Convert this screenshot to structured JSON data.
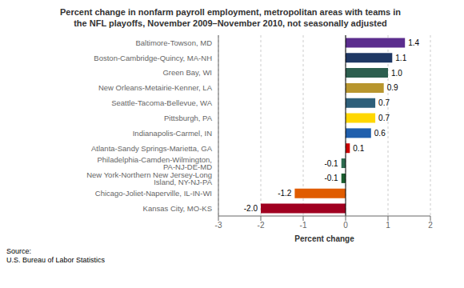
{
  "chart_data": {
    "type": "bar",
    "orientation": "horizontal",
    "title": "Percent change in nonfarm payroll employment, metropolitan areas with teams in\nthe NFL playoffs, November 2009–November 2010, not seasonally adjusted",
    "categories": [
      "Baltimore-Towson, MD",
      "Boston-Cambridge-Quincy, MA-NH",
      "Green Bay, WI",
      "New Orleans-Metairie-Kenner, LA",
      "Seattle-Tacoma-Bellevue, WA",
      "Pittsburgh, PA",
      "Indianapolis-Carmel, IN",
      "Atlanta-Sandy Springs-Marietta, GA",
      "Philadelphia-Camden-Wilmington, PA-NJ-DE-MD",
      "New York-Northern New Jersey-Long Island, NY-NJ-PA",
      "Chicago-Joliet-Naperville, IL-IN-WI",
      "Kansas City, MO-KS"
    ],
    "values": [
      1.4,
      1.1,
      1.0,
      0.9,
      0.7,
      0.7,
      0.6,
      0.1,
      -0.1,
      -0.1,
      -1.2,
      -2.0
    ],
    "value_labels": [
      "1.4",
      "1.1",
      "1.0",
      "0.9",
      "0.7",
      "0.7",
      "0.6",
      "0.1",
      "-0.1",
      "-0.1",
      "-1.2",
      "-2.0"
    ],
    "colors": [
      "#5B2D8E",
      "#1F3864",
      "#2D5F4F",
      "#B8962E",
      "#2E5F7A",
      "#FFD700",
      "#1F5FAD",
      "#CC0000",
      "#2D6B4F",
      "#1A5C2E",
      "#E05C00",
      "#A00020"
    ],
    "xlabel": "Percent change",
    "xlim": [
      -3,
      2
    ],
    "xticks": [
      -3,
      -2,
      -1,
      0,
      1,
      2
    ],
    "grid": true,
    "data_labels": true,
    "annotations": [
      "Source:",
      "U.S. Bureau of Labor Statistics"
    ]
  }
}
